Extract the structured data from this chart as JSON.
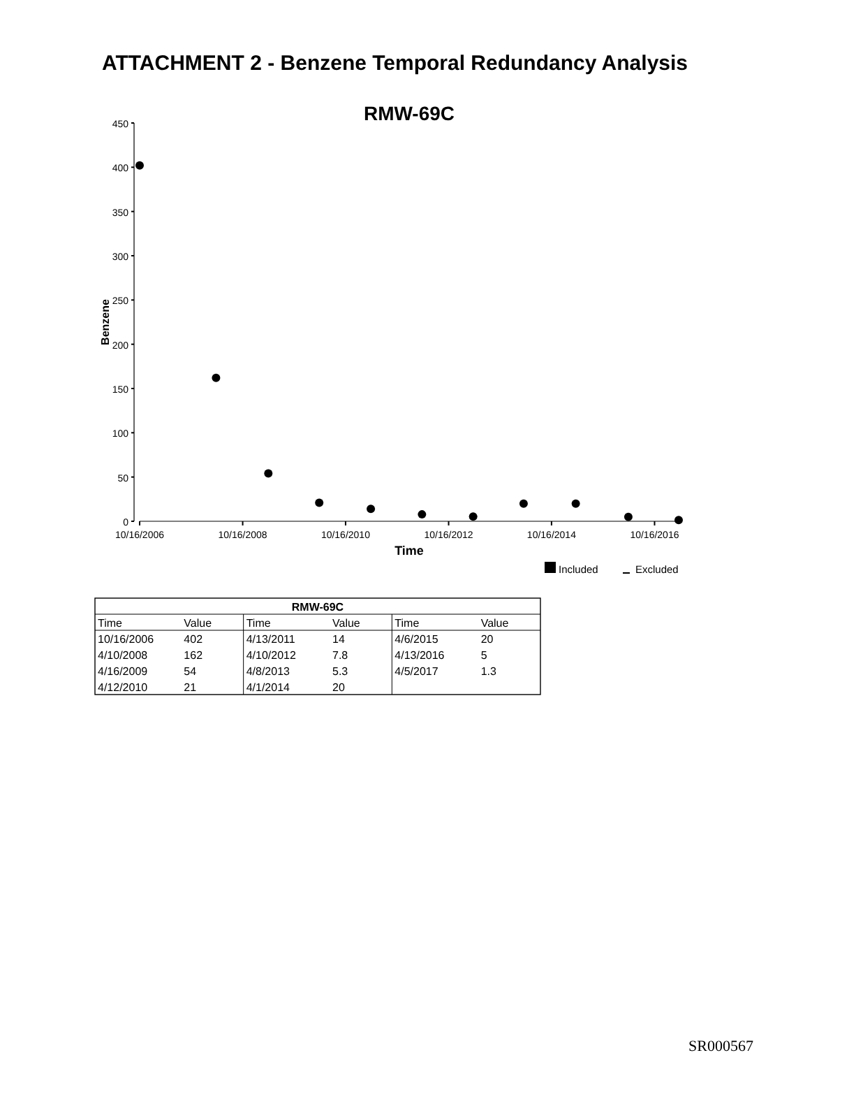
{
  "chart_data": {
    "type": "scatter",
    "title": "ATTACHMENT 2 - Benzene Temporal Redundancy Analysis",
    "subtitle": "RMW-69C",
    "xlabel": "Time",
    "ylabel": "Benzene",
    "x": [
      "2006-10-16",
      "2008-04-10",
      "2009-04-16",
      "2010-04-12",
      "2011-04-13",
      "2012-04-10",
      "2013-04-08",
      "2014-04-01",
      "2015-04-06",
      "2016-04-13",
      "2017-04-05"
    ],
    "series": [
      {
        "name": "Included",
        "color": "#000000",
        "values": [
          402,
          162,
          54,
          21,
          14,
          7.8,
          5.3,
          20,
          20,
          5,
          1.3
        ]
      },
      {
        "name": "Excluded",
        "color": "#000000",
        "marker": "none",
        "values": [
          null,
          null,
          null,
          null,
          null,
          null,
          null,
          null,
          null,
          null,
          null
        ]
      }
    ],
    "xlim": [
      "2006-10-16",
      "2017-04-05"
    ],
    "xticks": [
      {
        "value": "2006-10-16",
        "label": "10/16/2006"
      },
      {
        "value": "2008-10-16",
        "label": "10/16/2008"
      },
      {
        "value": "2010-10-16",
        "label": "10/16/2010"
      },
      {
        "value": "2012-10-16",
        "label": "10/16/2012"
      },
      {
        "value": "2014-10-16",
        "label": "10/16/2014"
      },
      {
        "value": "2016-10-16",
        "label": "10/16/2016"
      }
    ],
    "ylim": [
      0,
      450
    ],
    "yticks": [
      0,
      50,
      100,
      150,
      200,
      250,
      300,
      350,
      400,
      450
    ],
    "marker": "circle",
    "grid": false,
    "legend": "bottom right",
    "value_labels": [
      "402",
      "162",
      "54",
      "21",
      "14",
      "7.8",
      "5.3",
      "20",
      "20",
      "5",
      "1.3"
    ],
    "annotations": [
      "Value",
      "SR000567",
      "10/16/2006",
      "4/10/2008",
      "4/16/2009",
      "4/12/2010",
      "4/13/2011",
      "4/10/2012",
      "4/8/2013",
      "4/1/2014",
      "4/6/2015",
      "4/13/2016",
      "4/5/2017"
    ]
  }
}
